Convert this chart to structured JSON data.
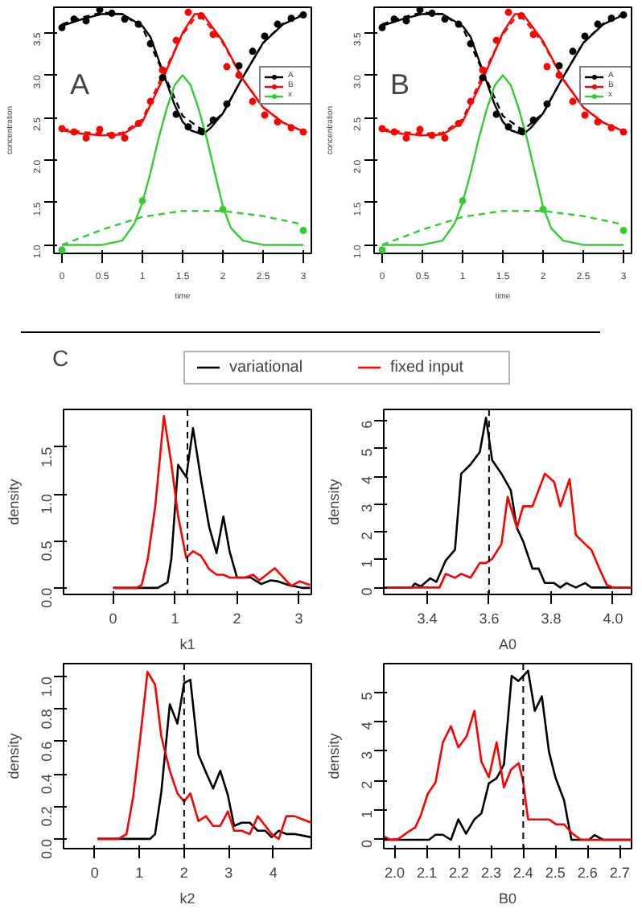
{
  "chart_data": [
    {
      "type": "line",
      "annotations": [
        "A"
      ],
      "xlabel": "time",
      "ylabel": "concentration",
      "xlim": [
        -0.1,
        3.1
      ],
      "ylim": [
        0.9,
        3.8
      ],
      "xticks": [
        0.0,
        0.5,
        1.0,
        1.5,
        2.0,
        2.5,
        3.0
      ],
      "yticks": [
        {
          "value": 1,
          "label": "1.0"
        },
        1.5,
        {
          "value": 2,
          "label": "2.0"
        },
        2.5,
        {
          "value": 3,
          "label": "3.0"
        },
        3.5
      ],
      "legend": "right",
      "grid": false,
      "series": [
        {
          "type": "scatter",
          "name": "A",
          "color": "#000000",
          "marker": "circle",
          "x": [
            0,
            0.15,
            0.3,
            0.47,
            0.62,
            0.78,
            0.95,
            1.1,
            1.25,
            1.42,
            1.57,
            1.73,
            1.88,
            2.05,
            2.2,
            2.37,
            2.52,
            2.68,
            2.85,
            3.0
          ],
          "values": [
            3.56,
            3.66,
            3.64,
            3.77,
            3.73,
            3.66,
            3.6,
            3.37,
            2.97,
            2.54,
            2.39,
            2.34,
            2.47,
            2.66,
            3.11,
            3.28,
            3.46,
            3.6,
            3.67,
            3.71
          ]
        },
        {
          "type": "line",
          "color": "#000000",
          "line_style": "solid",
          "x": [
            0,
            0.25,
            0.5,
            0.75,
            1.0,
            1.1,
            1.25,
            1.4,
            1.5,
            1.6,
            1.75,
            1.85,
            2.0,
            2.1,
            2.25,
            2.5,
            2.75,
            3.0
          ],
          "values": [
            3.58,
            3.66,
            3.72,
            3.72,
            3.58,
            3.45,
            3.05,
            2.65,
            2.45,
            2.35,
            2.3,
            2.38,
            2.55,
            2.72,
            2.98,
            3.38,
            3.6,
            3.71
          ]
        },
        {
          "type": "line",
          "color": "#000000",
          "line_style": "dashed",
          "x": [
            0,
            0.25,
            0.5,
            0.75,
            1.0,
            1.25,
            1.5,
            1.75,
            2.0,
            2.25,
            2.5,
            2.75,
            3.0
          ],
          "values": [
            3.6,
            3.68,
            3.74,
            3.72,
            3.56,
            3.05,
            2.52,
            2.35,
            2.55,
            2.98,
            3.38,
            3.61,
            3.72
          ]
        },
        {
          "type": "scatter",
          "name": "B",
          "color": "#ff0000",
          "marker": "circle",
          "x": [
            0,
            0.15,
            0.3,
            0.47,
            0.62,
            0.78,
            0.95,
            1.1,
            1.25,
            1.42,
            1.57,
            1.73,
            1.88,
            2.05,
            2.2,
            2.37,
            2.52,
            2.68,
            2.85,
            3.0
          ],
          "values": [
            2.37,
            2.33,
            2.26,
            2.36,
            2.29,
            2.26,
            2.43,
            2.69,
            3.06,
            3.41,
            3.74,
            3.7,
            3.48,
            3.1,
            3.0,
            2.69,
            2.53,
            2.45,
            2.38,
            2.33
          ]
        },
        {
          "type": "line",
          "color": "#ff0000",
          "line_style": "solid",
          "x": [
            0,
            0.25,
            0.5,
            0.75,
            1.0,
            1.25,
            1.5,
            1.65,
            1.75,
            2.0,
            2.25,
            2.5,
            2.75,
            3.0
          ],
          "values": [
            2.35,
            2.31,
            2.29,
            2.3,
            2.45,
            2.95,
            3.5,
            3.72,
            3.72,
            3.4,
            2.95,
            2.62,
            2.44,
            2.34
          ]
        },
        {
          "type": "line",
          "color": "#ff0000",
          "line_style": "dashed",
          "x": [
            0,
            0.25,
            0.5,
            0.75,
            1.0,
            1.25,
            1.5,
            1.65,
            1.75,
            2.0,
            2.25,
            2.5,
            2.75,
            3.0
          ],
          "values": [
            2.37,
            2.33,
            2.31,
            2.32,
            2.48,
            3.0,
            3.48,
            3.67,
            3.67,
            3.38,
            2.95,
            2.62,
            2.44,
            2.34
          ]
        },
        {
          "type": "scatter",
          "name": "x",
          "color": "#33cc33",
          "marker": "circle",
          "x": [
            0,
            1.0,
            2.0,
            3.0
          ],
          "values": [
            0.94,
            1.52,
            1.42,
            1.17
          ]
        },
        {
          "type": "line",
          "color": "#33cc33",
          "line_style": "solid",
          "x": [
            0,
            0.5,
            0.75,
            0.9,
            1.0,
            1.1,
            1.2,
            1.3,
            1.4,
            1.5,
            1.6,
            1.7,
            1.8,
            1.9,
            2.0,
            2.1,
            2.25,
            2.5,
            3.0
          ],
          "values": [
            1.0,
            1.0,
            1.05,
            1.25,
            1.5,
            1.85,
            2.25,
            2.6,
            2.88,
            3.0,
            2.88,
            2.6,
            2.25,
            1.85,
            1.45,
            1.2,
            1.05,
            1.0,
            1.0
          ]
        },
        {
          "type": "line",
          "color": "#33cc33",
          "line_style": "dashed",
          "x": [
            0,
            0.5,
            1.0,
            1.5,
            2.0,
            2.5,
            3.0
          ],
          "values": [
            1.0,
            1.18,
            1.33,
            1.4,
            1.4,
            1.34,
            1.24
          ]
        }
      ]
    },
    {
      "type": "line",
      "annotations": [
        "B"
      ],
      "xlabel": "time",
      "ylabel": "concentration",
      "xlim": [
        -0.1,
        3.1
      ],
      "ylim": [
        0.9,
        3.8
      ],
      "xticks": [
        0.0,
        0.5,
        1.0,
        1.5,
        2.0,
        2.5,
        3.0
      ],
      "yticks": [
        {
          "value": 1,
          "label": "1.0"
        },
        1.5,
        {
          "value": 2,
          "label": "2.0"
        },
        2.5,
        {
          "value": 3,
          "label": "3.0"
        },
        3.5
      ],
      "legend": "right",
      "grid": false,
      "series": [
        {
          "type": "scatter",
          "name": "A",
          "color": "#000000",
          "marker": "circle",
          "x": [
            0,
            0.15,
            0.3,
            0.47,
            0.62,
            0.78,
            0.95,
            1.1,
            1.25,
            1.42,
            1.57,
            1.73,
            1.88,
            2.05,
            2.2,
            2.37,
            2.52,
            2.68,
            2.85,
            3.0
          ],
          "values": [
            3.56,
            3.66,
            3.64,
            3.77,
            3.73,
            3.66,
            3.6,
            3.37,
            2.97,
            2.54,
            2.39,
            2.34,
            2.47,
            2.66,
            3.11,
            3.28,
            3.46,
            3.6,
            3.67,
            3.71
          ]
        },
        {
          "type": "line",
          "color": "#000000",
          "line_style": "solid",
          "x": [
            0,
            0.25,
            0.5,
            0.75,
            1.0,
            1.1,
            1.25,
            1.4,
            1.5,
            1.6,
            1.75,
            1.85,
            2.0,
            2.1,
            2.25,
            2.5,
            2.75,
            3.0
          ],
          "values": [
            3.58,
            3.66,
            3.72,
            3.72,
            3.58,
            3.45,
            3.05,
            2.65,
            2.45,
            2.35,
            2.3,
            2.38,
            2.55,
            2.72,
            2.98,
            3.38,
            3.6,
            3.71
          ]
        },
        {
          "type": "line",
          "color": "#000000",
          "line_style": "dashed",
          "x": [
            0,
            0.25,
            0.5,
            0.75,
            1.0,
            1.25,
            1.5,
            1.75,
            2.0,
            2.25,
            2.5,
            2.75,
            3.0
          ],
          "values": [
            3.6,
            3.68,
            3.74,
            3.72,
            3.56,
            3.05,
            2.52,
            2.35,
            2.55,
            2.98,
            3.38,
            3.61,
            3.72
          ]
        },
        {
          "type": "scatter",
          "name": "B",
          "color": "#ff0000",
          "marker": "circle",
          "x": [
            0,
            0.15,
            0.3,
            0.47,
            0.62,
            0.78,
            0.95,
            1.1,
            1.25,
            1.42,
            1.57,
            1.73,
            1.88,
            2.05,
            2.2,
            2.37,
            2.52,
            2.68,
            2.85,
            3.0
          ],
          "values": [
            2.37,
            2.33,
            2.26,
            2.36,
            2.29,
            2.26,
            2.43,
            2.69,
            3.06,
            3.41,
            3.74,
            3.7,
            3.48,
            3.1,
            3.0,
            2.69,
            2.53,
            2.45,
            2.38,
            2.33
          ]
        },
        {
          "type": "line",
          "color": "#ff0000",
          "line_style": "solid",
          "x": [
            0,
            0.25,
            0.5,
            0.75,
            1.0,
            1.25,
            1.5,
            1.65,
            1.75,
            2.0,
            2.25,
            2.5,
            2.75,
            3.0
          ],
          "values": [
            2.35,
            2.31,
            2.29,
            2.3,
            2.45,
            2.95,
            3.5,
            3.72,
            3.72,
            3.4,
            2.95,
            2.62,
            2.44,
            2.34
          ]
        },
        {
          "type": "line",
          "color": "#ff0000",
          "line_style": "dashed",
          "x": [
            0,
            0.25,
            0.5,
            0.75,
            1.0,
            1.25,
            1.5,
            1.65,
            1.75,
            2.0,
            2.25,
            2.5,
            2.75,
            3.0
          ],
          "values": [
            2.37,
            2.33,
            2.31,
            2.32,
            2.48,
            3.0,
            3.48,
            3.67,
            3.67,
            3.38,
            2.95,
            2.62,
            2.44,
            2.34
          ]
        },
        {
          "type": "scatter",
          "name": "x",
          "color": "#33cc33",
          "marker": "circle",
          "x": [
            0,
            1.0,
            2.0,
            3.0
          ],
          "values": [
            0.94,
            1.52,
            1.42,
            1.17
          ]
        },
        {
          "type": "line",
          "color": "#33cc33",
          "line_style": "solid",
          "x": [
            0,
            0.5,
            0.75,
            0.9,
            1.0,
            1.1,
            1.2,
            1.3,
            1.4,
            1.5,
            1.6,
            1.7,
            1.8,
            1.9,
            2.0,
            2.1,
            2.25,
            2.5,
            3.0
          ],
          "values": [
            1.0,
            1.0,
            1.05,
            1.25,
            1.5,
            1.85,
            2.25,
            2.6,
            2.88,
            3.0,
            2.88,
            2.6,
            2.25,
            1.85,
            1.45,
            1.2,
            1.05,
            1.0,
            1.0
          ]
        },
        {
          "type": "line",
          "color": "#33cc33",
          "line_style": "dashed",
          "x": [
            0,
            0.5,
            1.0,
            1.5,
            2.0,
            2.5,
            3.0
          ],
          "values": [
            1.0,
            1.18,
            1.33,
            1.4,
            1.4,
            1.34,
            1.24
          ]
        }
      ]
    },
    {
      "type": "line",
      "annotations": [
        "C"
      ],
      "xlabel": "k1",
      "ylabel": "density",
      "xlim": [
        -0.8,
        3.2
      ],
      "ylim": [
        -0.07,
        1.9
      ],
      "xticks": [
        0,
        1,
        2,
        3
      ],
      "yticks": [
        {
          "value": 0,
          "label": "0.0"
        },
        0.5,
        {
          "value": 1,
          "label": "1.0"
        },
        1.5
      ],
      "legend": "top",
      "grid": false,
      "ref_lines": [
        {
          "axis": "x",
          "value": 1.2,
          "color": "#000000",
          "line_style": "dashed"
        }
      ],
      "series": [
        {
          "name": "variational",
          "color": "#000000",
          "x": [
            0,
            0.72,
            0.88,
            0.94,
            1.05,
            1.18,
            1.29,
            1.42,
            1.55,
            1.67,
            1.78,
            1.88,
            2.0,
            2.22,
            2.39,
            2.54,
            2.66,
            2.83,
            3.05,
            3.18
          ],
          "values": [
            0,
            0,
            0.06,
            0.31,
            1.31,
            1.18,
            1.7,
            1.15,
            0.65,
            0.37,
            0.76,
            0.39,
            0.11,
            0.11,
            0.04,
            0.08,
            0.07,
            0.03,
            0,
            0
          ]
        },
        {
          "name": "fixed input",
          "color": "#ff0000",
          "x": [
            0,
            0.37,
            0.46,
            0.56,
            0.68,
            0.82,
            0.94,
            1.05,
            1.18,
            1.29,
            1.42,
            1.55,
            1.67,
            1.78,
            1.88,
            2.13,
            2.26,
            2.36,
            2.61,
            2.79,
            2.88,
            3.01,
            3.18
          ],
          "values": [
            0,
            0,
            0.03,
            0.31,
            0.87,
            1.83,
            1.32,
            0.76,
            0.32,
            0.39,
            0.34,
            0.2,
            0.14,
            0.14,
            0.11,
            0.11,
            0.14,
            0.08,
            0.21,
            0.08,
            0.02,
            0.07,
            0.03
          ]
        }
      ]
    },
    {
      "type": "line",
      "xlabel": "A0",
      "ylabel": "density",
      "xlim": [
        3.26,
        4.06
      ],
      "ylim": [
        -0.25,
        6.4
      ],
      "xticks": [
        3.4,
        3.6,
        3.8,
        {
          "value": 4,
          "label": "4.0"
        }
      ],
      "yticks": [
        0,
        1,
        2,
        3,
        4,
        5,
        6
      ],
      "grid": false,
      "ref_lines": [
        {
          "axis": "x",
          "value": 3.6,
          "color": "#000000",
          "line_style": "dashed"
        }
      ],
      "series": [
        {
          "color": "#000000",
          "x": [
            3.26,
            3.35,
            3.36,
            3.38,
            3.41,
            3.43,
            3.46,
            3.49,
            3.51,
            3.54,
            3.57,
            3.59,
            3.61,
            3.64,
            3.67,
            3.69,
            3.71,
            3.74,
            3.76,
            3.78,
            3.81,
            3.83,
            3.85,
            3.88,
            3.91,
            3.93,
            4.06
          ],
          "values": [
            0,
            0,
            0.14,
            0.04,
            0.33,
            0.2,
            0.97,
            1.36,
            4.09,
            4.42,
            4.87,
            6.1,
            4.58,
            4.09,
            3.5,
            2.14,
            1.66,
            0.68,
            0.68,
            0.16,
            0.16,
            0,
            0.16,
            0,
            0.16,
            0,
            0
          ]
        },
        {
          "color": "#ff0000",
          "x": [
            3.26,
            3.44,
            3.46,
            3.49,
            3.51,
            3.54,
            3.57,
            3.59,
            3.61,
            3.64,
            3.66,
            3.69,
            3.71,
            3.74,
            3.76,
            3.78,
            3.81,
            3.83,
            3.86,
            3.88,
            3.91,
            3.93,
            3.96,
            3.98,
            4.0,
            4.06
          ],
          "values": [
            0,
            0,
            0.49,
            0.35,
            0.49,
            0.35,
            0.88,
            0.88,
            1.03,
            1.56,
            3.26,
            2.14,
            2.92,
            2.92,
            3.5,
            4.09,
            3.8,
            2.92,
            3.9,
            1.89,
            1.56,
            1.36,
            0.58,
            0.1,
            0,
            0
          ]
        }
      ]
    },
    {
      "type": "line",
      "xlabel": "k2",
      "ylabel": "density",
      "xlim": [
        -0.7,
        4.85
      ],
      "ylim": [
        -0.06,
        1.08
      ],
      "xticks": [
        0,
        1,
        2,
        3,
        4
      ],
      "yticks": [
        {
          "value": 0,
          "label": "0.0"
        },
        0.2,
        0.4,
        0.6,
        0.8,
        {
          "value": 1,
          "label": "1.0"
        }
      ],
      "grid": false,
      "ref_lines": [
        {
          "axis": "x",
          "value": 2,
          "color": "#000000",
          "line_style": "dashed"
        }
      ],
      "series": [
        {
          "color": "#000000",
          "x": [
            0.06,
            1.24,
            1.35,
            1.49,
            1.68,
            1.85,
            2.0,
            2.14,
            2.32,
            2.49,
            2.65,
            2.81,
            2.98,
            3.12,
            3.29,
            3.47,
            3.65,
            3.82,
            3.96,
            4.12,
            4.29,
            4.47,
            4.85
          ],
          "values": [
            0,
            0,
            0.03,
            0.29,
            0.83,
            0.71,
            0.96,
            0.98,
            0.52,
            0.41,
            0.31,
            0.42,
            0.27,
            0.08,
            0.1,
            0.1,
            0.05,
            0.05,
            0.01,
            0.05,
            0.03,
            0.03,
            0.01
          ]
        },
        {
          "color": "#ff0000",
          "x": [
            0.06,
            0.53,
            0.71,
            0.86,
            1.02,
            1.18,
            1.35,
            1.49,
            1.68,
            1.85,
            2.0,
            2.14,
            2.32,
            2.49,
            2.65,
            2.81,
            2.98,
            3.12,
            3.29,
            3.47,
            3.65,
            3.82,
            3.96,
            4.12,
            4.29,
            4.47,
            4.85
          ],
          "values": [
            0,
            0,
            0.03,
            0.26,
            0.63,
            1.03,
            0.95,
            0.63,
            0.42,
            0.28,
            0.23,
            0.28,
            0.11,
            0.14,
            0.08,
            0.08,
            0.17,
            0.05,
            0.05,
            0.03,
            0.14,
            0.08,
            0.03,
            0,
            0.14,
            0.14,
            0.1
          ]
        }
      ]
    },
    {
      "type": "line",
      "xlabel": "B0",
      "ylabel": "density",
      "xlim": [
        1.966,
        2.737
      ],
      "ylim": [
        -0.3,
        5.97
      ],
      "xticks": [
        {
          "value": 2,
          "label": "2.0"
        },
        2.1,
        2.2,
        2.3,
        2.4,
        2.5,
        2.6,
        2.7
      ],
      "yticks": [
        0,
        1,
        2,
        3,
        4,
        5
      ],
      "grid": false,
      "ref_lines": [
        {
          "axis": "x",
          "value": 2.4,
          "color": "#000000",
          "line_style": "dashed"
        }
      ],
      "series": [
        {
          "color": "#000000",
          "x": [
            1.966,
            2.107,
            2.127,
            2.15,
            2.175,
            2.198,
            2.222,
            2.248,
            2.27,
            2.293,
            2.317,
            2.34,
            2.364,
            2.385,
            2.4,
            2.415,
            2.436,
            2.458,
            2.48,
            2.5,
            2.527,
            2.55,
            2.605,
            2.622,
            2.648,
            2.737
          ],
          "values": [
            0,
            0,
            0.17,
            0.17,
            0,
            0.69,
            0.21,
            0.69,
            0.9,
            1.91,
            2.08,
            2.55,
            5.55,
            5.38,
            5.55,
            5.73,
            4.37,
            4.86,
            2.99,
            2.12,
            1.34,
            0,
            0,
            0.16,
            0,
            0
          ]
        },
        {
          "color": "#ff0000",
          "x": [
            1.966,
            1.986,
            2.012,
            2.038,
            2.064,
            2.081,
            2.103,
            2.127,
            2.15,
            2.175,
            2.198,
            2.224,
            2.248,
            2.27,
            2.293,
            2.317,
            2.34,
            2.362,
            2.386,
            2.4,
            2.415,
            2.48,
            2.503,
            2.527,
            2.553,
            2.58,
            2.737
          ],
          "values": [
            0.12,
            0,
            0.03,
            0.24,
            0.42,
            0.82,
            1.56,
            1.94,
            3.3,
            3.85,
            3.13,
            3.51,
            4.37,
            2.64,
            2.12,
            3.3,
            1.77,
            2.38,
            2.6,
            1.94,
            0.69,
            0.69,
            0.52,
            0.52,
            0.21,
            0,
            0
          ]
        }
      ]
    }
  ]
}
